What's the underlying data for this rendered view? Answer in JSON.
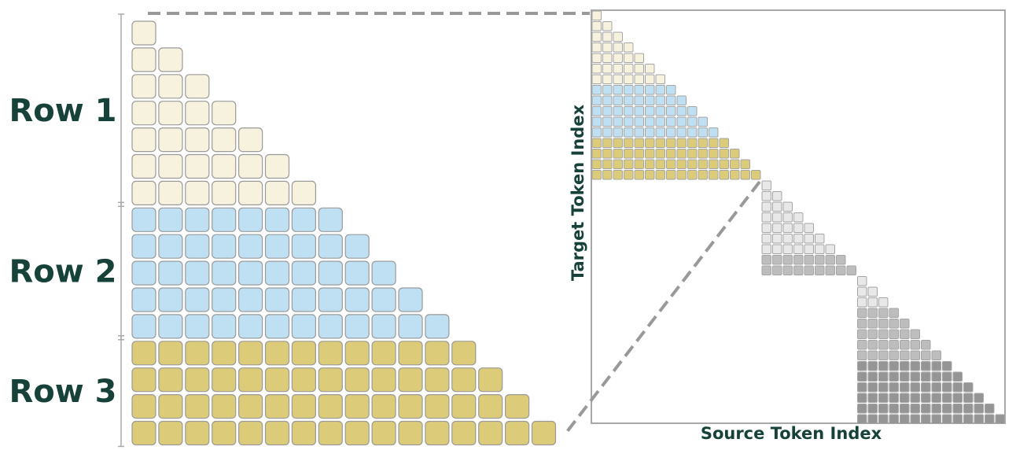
{
  "left_panel": {
    "groups": [
      {
        "label": "Row 1",
        "rows": 7,
        "color": "#f7f2de"
      },
      {
        "label": "Row 2",
        "rows": 5,
        "color": "#bfe0f3"
      },
      {
        "label": "Row 3",
        "rows": 4,
        "color": "#dccb78"
      }
    ]
  },
  "right_panel": {
    "x_axis_label": "Source Token Index",
    "y_axis_label": "Target Token Index",
    "blocks": [
      {
        "bands": [
          {
            "rows": 7,
            "color": "#f7f2de"
          },
          {
            "rows": 5,
            "color": "#bfe0f3"
          },
          {
            "rows": 4,
            "color": "#dccb78"
          }
        ]
      },
      {
        "bands": [
          {
            "rows": 7,
            "color": "#e8e8e8"
          },
          {
            "rows": 2,
            "color": "#bdbdbd"
          }
        ]
      },
      {
        "bands": [
          {
            "rows": 3,
            "color": "#e8e8e8"
          },
          {
            "rows": 5,
            "color": "#bdbdbd"
          },
          {
            "rows": 6,
            "color": "#959595"
          }
        ]
      }
    ]
  },
  "colors": {
    "label": "#17423a",
    "cell_border": "#9a9a9a",
    "connector": "#999999"
  }
}
